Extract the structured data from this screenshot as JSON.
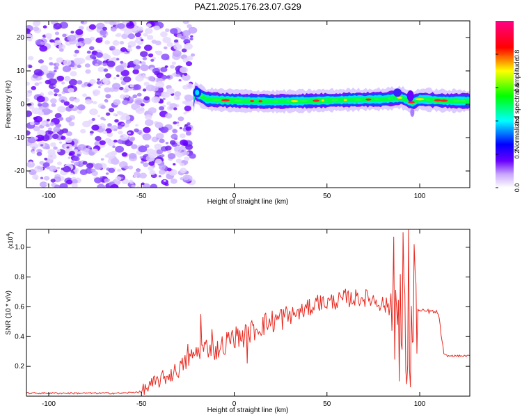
{
  "title": "PAZ1.2025.176.23.07.G29",
  "chart_data": [
    {
      "type": "heatmap",
      "xlabel": "Height of straight line (km)",
      "ylabel": "Frequency (Hz)",
      "xlim": [
        -112,
        127
      ],
      "ylim": [
        -25,
        25
      ],
      "xticks": [
        "-100",
        "-50",
        "0",
        "50",
        "100"
      ],
      "yticks": [
        "-20",
        "-10",
        "0",
        "10",
        "20"
      ],
      "colorbar": {
        "label": "Normalized spectral amplitude",
        "range": [
          0,
          1
        ],
        "ticks": [
          "0.0",
          "0.2",
          "0.4",
          "0.6",
          "0.8"
        ],
        "colors": [
          "#ffffff",
          "#6a00ff",
          "#0000ff",
          "#00ffff",
          "#00ff00",
          "#ffff00",
          "#ff0000",
          "#ff00aa"
        ]
      },
      "noise_region": {
        "x": [
          -112,
          -22
        ],
        "frequency": [
          -25,
          25
        ],
        "description": "scattered low-amplitude noise"
      },
      "signal_track": {
        "x_start": -22,
        "x_end": 127,
        "center_frequency": [
          {
            "x": -21,
            "f": 3.5
          },
          {
            "x": -15,
            "f": 1.5
          },
          {
            "x": -5,
            "f": 1.2
          },
          {
            "x": 5,
            "f": 1.0
          },
          {
            "x": 20,
            "f": 0.8
          },
          {
            "x": 40,
            "f": 1.0
          },
          {
            "x": 60,
            "f": 1.3
          },
          {
            "x": 80,
            "f": 1.5
          },
          {
            "x": 90,
            "f": 2.0
          },
          {
            "x": 96,
            "f": 0.5
          },
          {
            "x": 100,
            "f": 1.5
          },
          {
            "x": 115,
            "f": 1.0
          },
          {
            "x": 127,
            "f": 1.0
          }
        ]
      }
    },
    {
      "type": "line",
      "xlabel": "Height of straight line (km)",
      "ylabel": "SNR (10 * v/v)",
      "yscale_label": "(x10",
      "yscale_exp": "4",
      "yscale_close": ")",
      "xlim": [
        -112,
        127
      ],
      "ylim": [
        0,
        1.12
      ],
      "xticks": [
        "-100",
        "-50",
        "0",
        "50",
        "100"
      ],
      "yticks": [
        "0.2",
        "0.4",
        "0.6",
        "0.8",
        "1.0"
      ],
      "color": "#e8281f",
      "series": [
        {
          "x": [
            -112,
            -100,
            -80,
            -60,
            -50,
            -45,
            -40,
            -35,
            -30,
            -25,
            -20,
            -15,
            -10,
            -5,
            0,
            5,
            10,
            15,
            20,
            25,
            30,
            35,
            40,
            45,
            50,
            55,
            60,
            65,
            70,
            75,
            80,
            85,
            88,
            90,
            92,
            94,
            96,
            98,
            100,
            105,
            110,
            113,
            115,
            120,
            127
          ],
          "y": [
            0.02,
            0.02,
            0.02,
            0.02,
            0.03,
            0.07,
            0.11,
            0.14,
            0.18,
            0.24,
            0.3,
            0.33,
            0.3,
            0.36,
            0.4,
            0.4,
            0.44,
            0.48,
            0.5,
            0.52,
            0.54,
            0.56,
            0.59,
            0.62,
            0.63,
            0.64,
            0.65,
            0.66,
            0.66,
            0.65,
            0.62,
            0.58,
            0.55,
            0.5,
            0.45,
            0.4,
            0.38,
            0.6,
            0.57,
            0.57,
            0.56,
            0.28,
            0.27,
            0.27,
            0.27
          ],
          "spikes": [
            {
              "x": -25,
              "y": 0.35
            },
            {
              "x": -18,
              "y": 0.55
            },
            {
              "x": -12,
              "y": 0.45
            },
            {
              "x": -5,
              "y": 0.28
            },
            {
              "x": 7,
              "y": 0.22
            },
            {
              "x": 25,
              "y": 0.58
            },
            {
              "x": 45,
              "y": 0.68
            },
            {
              "x": 60,
              "y": 0.72
            },
            {
              "x": 86,
              "y": 1.07
            },
            {
              "x": 89,
              "y": 0.1
            },
            {
              "x": 91,
              "y": 1.1
            },
            {
              "x": 93,
              "y": 0.08
            },
            {
              "x": 94,
              "y": 1.12
            },
            {
              "x": 95,
              "y": 0.06
            },
            {
              "x": 97,
              "y": 1.02
            }
          ]
        }
      ]
    }
  ]
}
